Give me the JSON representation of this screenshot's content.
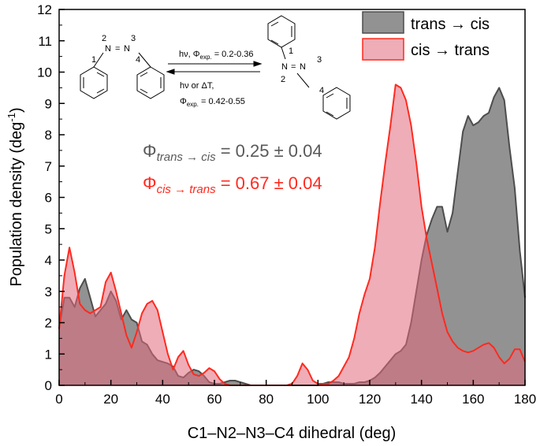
{
  "chart_data": {
    "type": "area",
    "xlabel": "C1–N2–N3–C4 dihedral (deg)",
    "ylabel_main": "Population density (deg",
    "ylabel_exp": "-1",
    "ylabel_close": ")",
    "xlim": [
      0,
      180
    ],
    "ylim": [
      0,
      12
    ],
    "xticks": [
      "0",
      "20",
      "40",
      "60",
      "80",
      "100",
      "120",
      "140",
      "160",
      "180"
    ],
    "yticks": [
      "0",
      "1",
      "2",
      "3",
      "4",
      "5",
      "6",
      "7",
      "8",
      "9",
      "10",
      "11",
      "12"
    ],
    "legend_position": "top-right",
    "grid": false,
    "series": [
      {
        "name": "trans → cis",
        "color": "#4d4d4d",
        "fill": "#7f7f7f",
        "x": [
          0,
          2,
          4,
          6,
          8,
          10,
          12,
          14,
          16,
          18,
          20,
          22,
          24,
          26,
          28,
          30,
          32,
          34,
          36,
          38,
          40,
          42,
          44,
          46,
          48,
          50,
          52,
          54,
          56,
          58,
          60,
          62,
          64,
          66,
          68,
          70,
          72,
          74,
          76,
          78,
          80,
          82,
          84,
          86,
          88,
          90,
          92,
          94,
          96,
          98,
          100,
          102,
          104,
          106,
          108,
          110,
          112,
          114,
          116,
          118,
          120,
          122,
          124,
          126,
          128,
          130,
          132,
          134,
          136,
          138,
          140,
          142,
          144,
          146,
          148,
          150,
          152,
          154,
          156,
          158,
          160,
          162,
          164,
          166,
          168,
          170,
          172,
          174,
          176,
          178,
          180
        ],
        "values": [
          1.8,
          2.8,
          2.8,
          2.5,
          3.1,
          3.4,
          2.8,
          2.2,
          2.4,
          2.6,
          3.0,
          2.7,
          2.1,
          2.4,
          2.1,
          2.0,
          1.4,
          1.3,
          1.0,
          0.8,
          0.75,
          0.7,
          0.6,
          0.3,
          0.25,
          0.4,
          0.5,
          0.45,
          0.3,
          0.1,
          0.05,
          0.05,
          0.1,
          0.15,
          0.15,
          0.1,
          0.05,
          0.0,
          0.0,
          0.0,
          0.0,
          0.0,
          0.0,
          0.0,
          0.0,
          0.0,
          0.0,
          0.0,
          0.0,
          0.0,
          0.0,
          0.05,
          0.1,
          0.1,
          0.1,
          0.05,
          0.05,
          0.05,
          0.1,
          0.1,
          0.15,
          0.25,
          0.4,
          0.6,
          0.8,
          1.0,
          1.1,
          1.3,
          2.0,
          3.0,
          4.0,
          4.8,
          5.3,
          5.7,
          5.7,
          4.9,
          5.5,
          6.8,
          8.1,
          8.6,
          8.3,
          8.4,
          8.6,
          8.7,
          9.2,
          9.5,
          9.1,
          7.6,
          6.3,
          4.3,
          2.8
        ]
      },
      {
        "name": "cis → trans",
        "color": "#ff2a1f",
        "fill": "#e26a7c",
        "x": [
          0,
          2,
          4,
          6,
          8,
          10,
          12,
          14,
          16,
          18,
          20,
          22,
          24,
          26,
          28,
          30,
          32,
          34,
          36,
          38,
          40,
          42,
          44,
          46,
          48,
          50,
          52,
          54,
          56,
          58,
          60,
          62,
          64,
          66,
          68,
          70,
          72,
          74,
          76,
          78,
          80,
          82,
          84,
          86,
          88,
          90,
          92,
          94,
          96,
          98,
          100,
          102,
          104,
          106,
          108,
          110,
          112,
          114,
          116,
          118,
          120,
          122,
          124,
          126,
          128,
          130,
          132,
          134,
          136,
          138,
          140,
          142,
          144,
          146,
          148,
          150,
          152,
          154,
          156,
          158,
          160,
          162,
          164,
          166,
          168,
          170,
          172,
          174,
          176,
          178,
          180
        ],
        "values": [
          1.8,
          3.5,
          4.4,
          3.6,
          2.6,
          2.4,
          2.3,
          2.4,
          2.5,
          3.3,
          3.6,
          3.0,
          2.3,
          1.6,
          1.2,
          1.7,
          2.3,
          2.6,
          2.7,
          2.4,
          1.7,
          1.0,
          0.5,
          0.9,
          1.1,
          0.65,
          0.35,
          0.3,
          0.4,
          0.55,
          0.45,
          0.2,
          0.05,
          0.0,
          0.0,
          0.0,
          0.0,
          0.0,
          0.0,
          0.0,
          0.0,
          0.0,
          0.0,
          0.0,
          0.0,
          0.05,
          0.3,
          0.7,
          0.5,
          0.15,
          0.05,
          0.05,
          0.05,
          0.15,
          0.3,
          0.6,
          0.9,
          1.5,
          2.3,
          2.9,
          3.4,
          4.4,
          5.8,
          7.1,
          8.3,
          9.6,
          9.5,
          9.1,
          8.3,
          7.1,
          5.7,
          4.7,
          3.9,
          3.1,
          2.3,
          1.7,
          1.4,
          1.2,
          1.1,
          1.05,
          1.1,
          1.2,
          1.3,
          1.35,
          1.2,
          0.9,
          0.7,
          0.85,
          1.15,
          1.15,
          0.75
        ]
      }
    ]
  },
  "annotations": {
    "reaction": {
      "forward_label": "hν, Φ",
      "forward_sub": "exp.",
      "forward_value": " = 0.2-0.36",
      "reverse_label": "hν or ΔT,",
      "reverse_phi": "Φ",
      "reverse_sub": "exp.",
      "reverse_value": " = 0.42-0.55"
    },
    "trans_structure": {
      "n_left": "N",
      "n_right": "N",
      "eq": "=",
      "num1": "1",
      "num2": "2",
      "num3": "3",
      "num4": "4"
    },
    "cis_structure": {
      "n_top": "N",
      "n_bottom": "N",
      "eq": "=",
      "num1": "1",
      "num2": "2",
      "num3": "3",
      "num4": "4"
    },
    "qy_trans": {
      "phi": "Φ",
      "sub": "trans → cis",
      "value": " = 0.25 ± 0.04",
      "color": "#595959"
    },
    "qy_cis": {
      "phi": "Φ",
      "sub": "cis → trans",
      "value": " = 0.67 ± 0.04",
      "color": "#ff2a1f"
    }
  }
}
